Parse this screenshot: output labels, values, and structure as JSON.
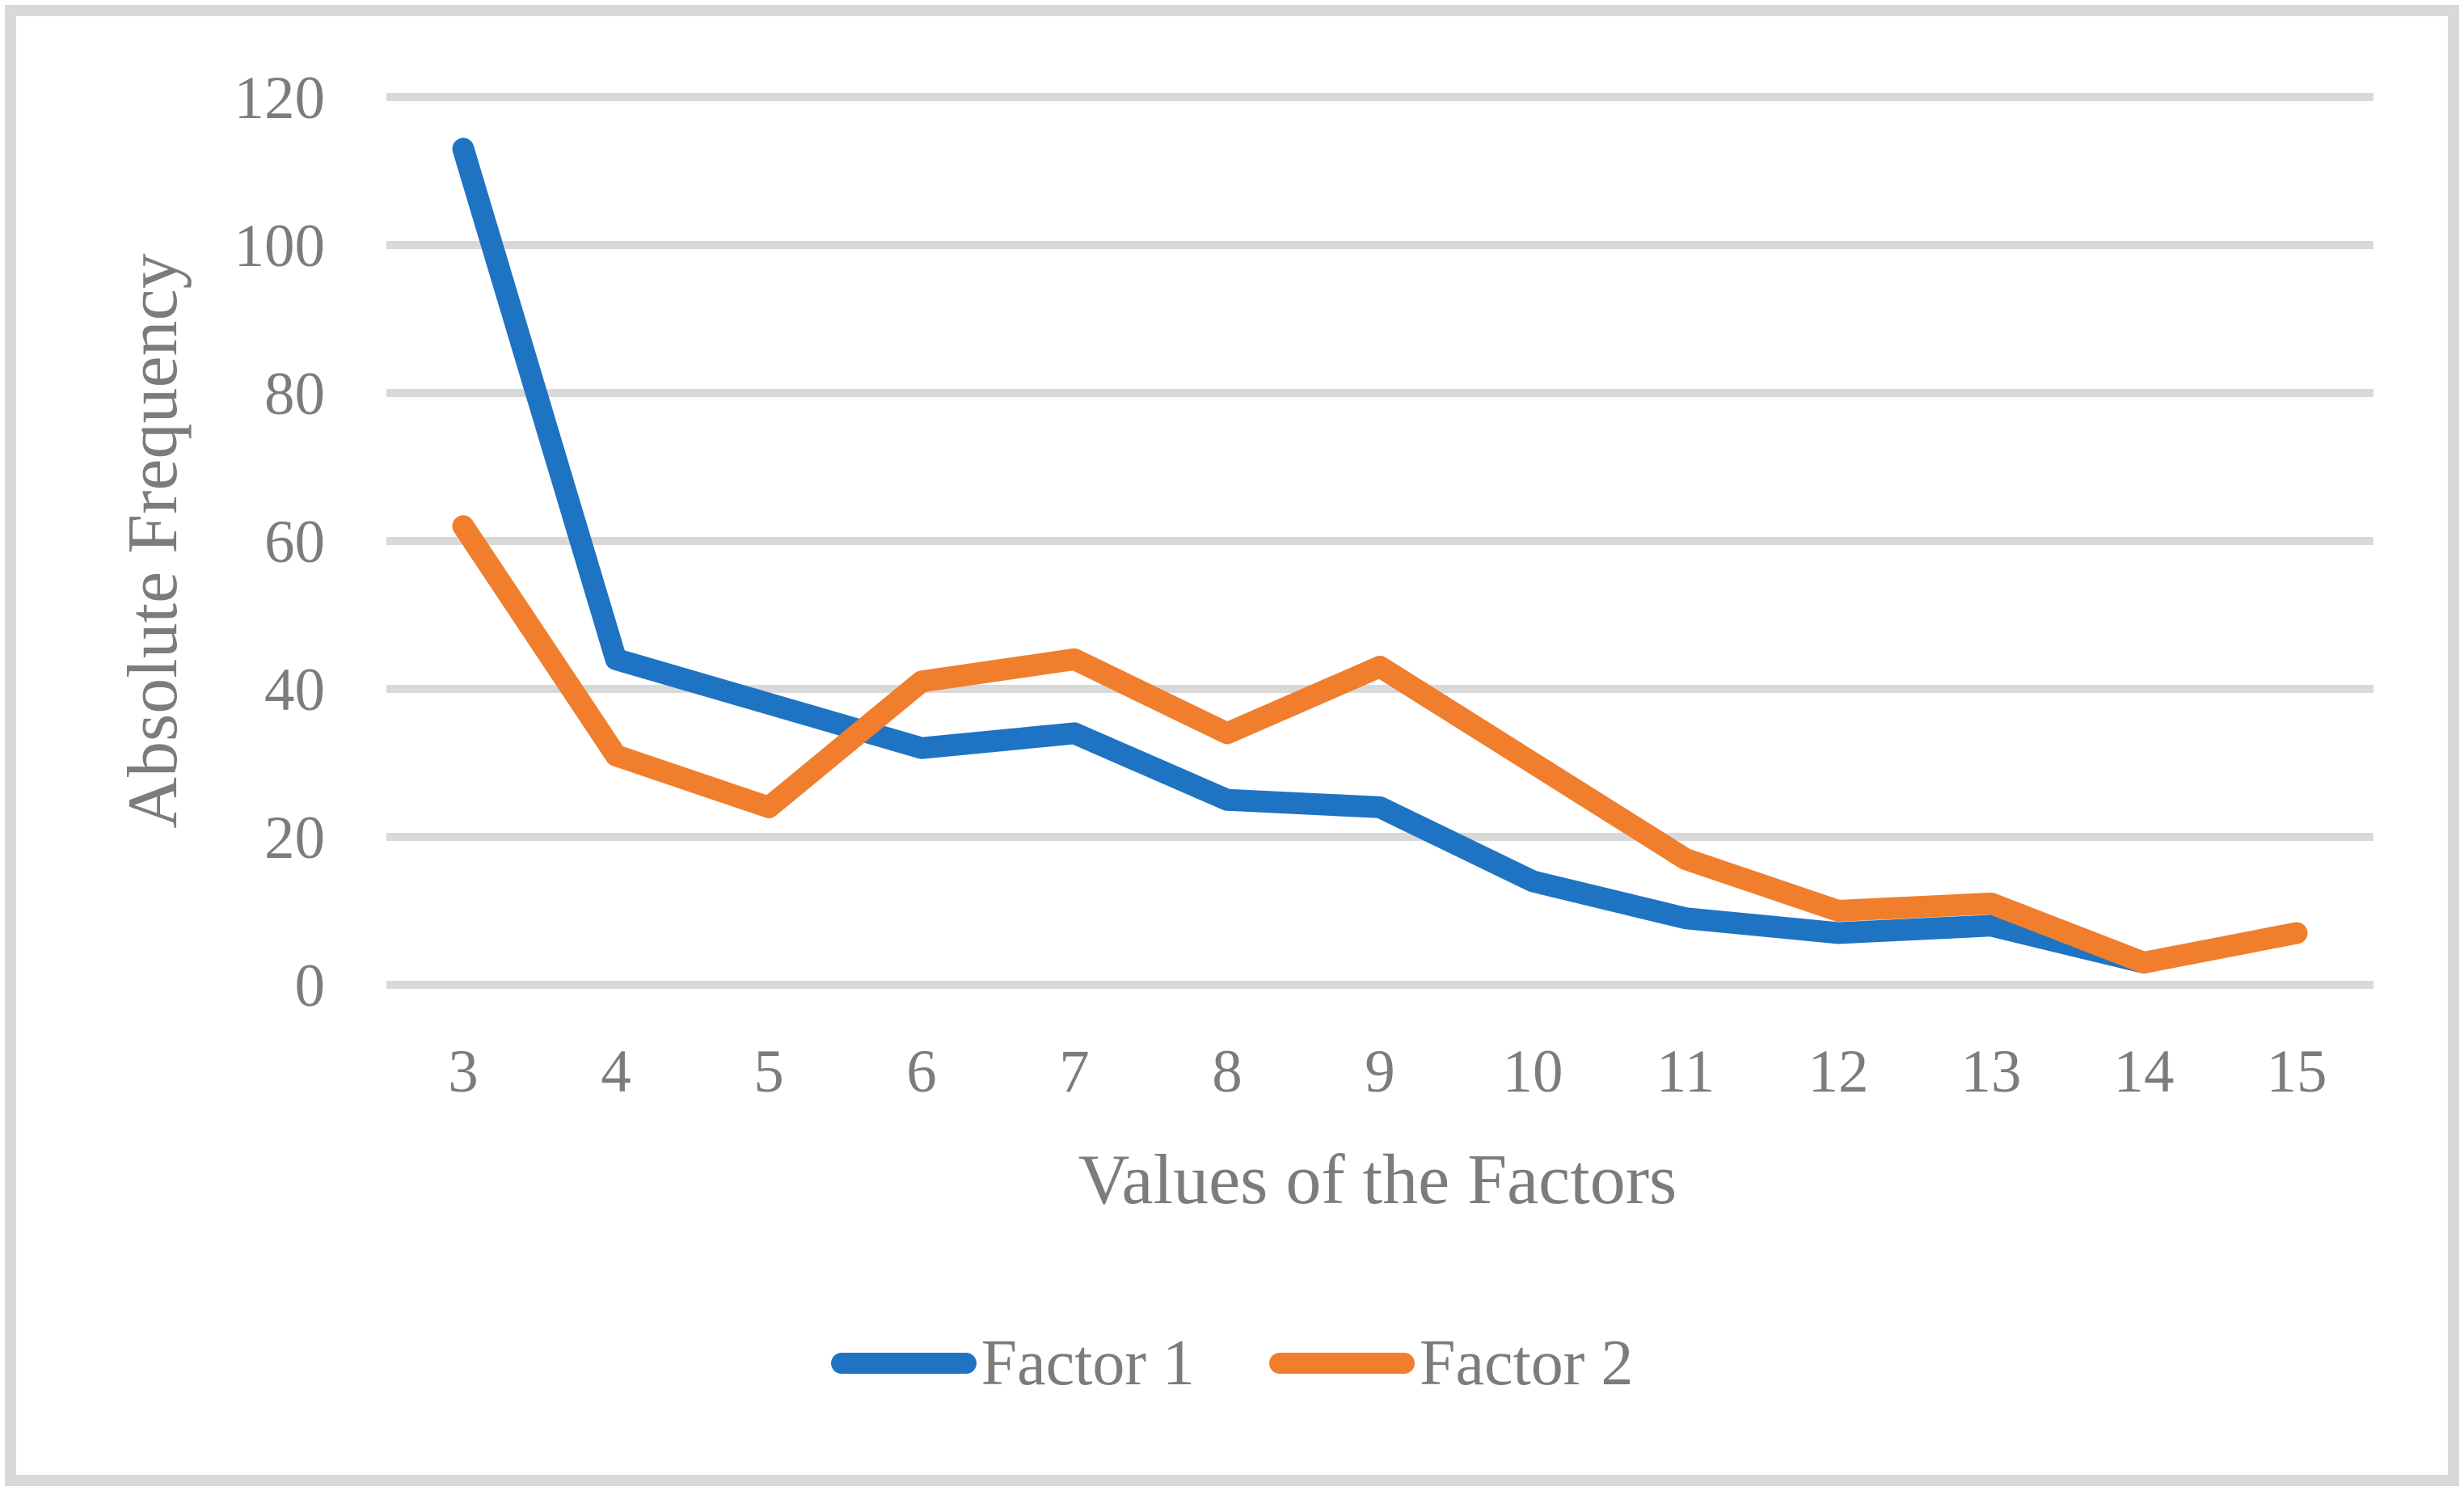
{
  "chart_data": {
    "type": "line",
    "title": "",
    "xlabel": "Values of the Factors",
    "ylabel": "Absolute Frequency",
    "categories": [
      3,
      4,
      5,
      6,
      7,
      8,
      9,
      10,
      11,
      12,
      13,
      14,
      15
    ],
    "y_ticks": [
      0,
      20,
      40,
      60,
      80,
      100,
      120
    ],
    "ylim": [
      0,
      120
    ],
    "grid": "horizontal-only",
    "legend_position": "bottom-center",
    "colors": {
      "factor1": "#1e73c3",
      "factor2": "#f07e2d",
      "gridline": "#d9d9d9",
      "text": "#7c7c7c",
      "frame": "#d9d9d9"
    },
    "series": [
      {
        "name": "Factor 1",
        "color": "#1e73c3",
        "x": [
          3,
          4,
          5,
          6,
          7,
          8,
          9,
          10,
          11,
          12,
          13,
          14
        ],
        "values": [
          113,
          44,
          38,
          32,
          34,
          25,
          24,
          14,
          9,
          7,
          8,
          3
        ]
      },
      {
        "name": "Factor 2",
        "color": "#f07e2d",
        "x": [
          3,
          4,
          5,
          6,
          7,
          8,
          9,
          10,
          11,
          12,
          13,
          14,
          15
        ],
        "values": [
          62,
          31,
          24,
          41,
          44,
          34,
          43,
          30,
          17,
          10,
          11,
          3,
          7
        ]
      }
    ]
  }
}
